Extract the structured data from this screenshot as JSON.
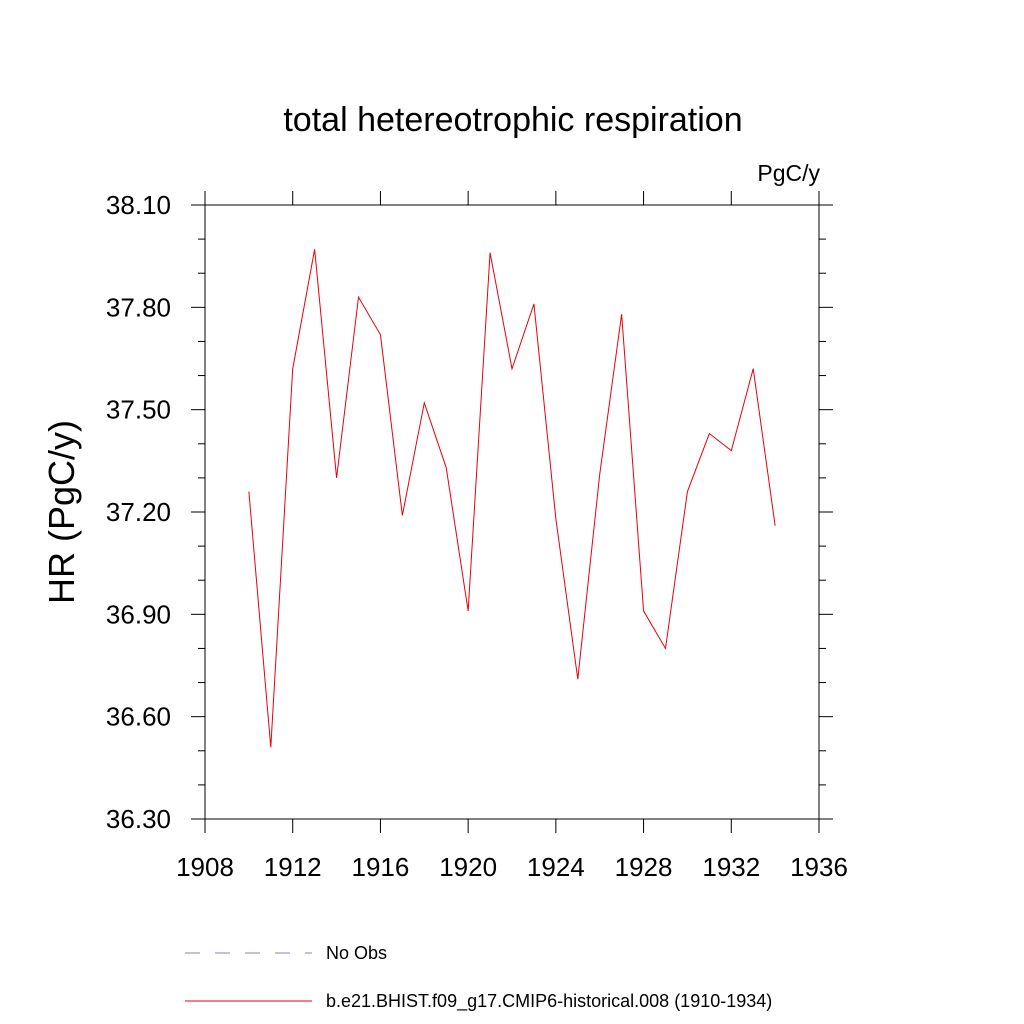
{
  "chart_data": {
    "type": "line",
    "title": "total hetereotrophic respiration",
    "units_label": "PgC/y",
    "ylabel": "HR  (PgC/y)",
    "xlabel": "",
    "xlim": [
      1908,
      1936
    ],
    "ylim": [
      36.3,
      38.1
    ],
    "x_ticks": [
      "1908",
      "1912",
      "1916",
      "1920",
      "1924",
      "1928",
      "1932",
      "1936"
    ],
    "y_ticks": [
      "36.30",
      "36.60",
      "36.90",
      "37.20",
      "37.50",
      "37.80",
      "38.10"
    ],
    "series": [
      {
        "name": "b.e21.BHIST.f09_g17.CMIP6-historical.008 (1910-1934)",
        "color": "#e8000b",
        "style": "solid",
        "x": [
          1910,
          1911,
          1912,
          1913,
          1914,
          1915,
          1916,
          1917,
          1918,
          1919,
          1920,
          1921,
          1922,
          1923,
          1924,
          1925,
          1926,
          1927,
          1928,
          1929,
          1930,
          1931,
          1932,
          1933,
          1934
        ],
        "values": [
          37.26,
          36.51,
          37.62,
          37.97,
          37.3,
          37.83,
          37.72,
          37.19,
          37.52,
          37.33,
          36.91,
          37.96,
          37.62,
          37.81,
          37.18,
          36.71,
          37.31,
          37.78,
          36.91,
          36.8,
          37.26,
          37.43,
          37.38,
          37.62,
          37.16
        ]
      }
    ],
    "legend": [
      {
        "label": "No Obs",
        "color": "#7f7fd0",
        "style": "dashed"
      },
      {
        "label": "b.e21.BHIST.f09_g17.CMIP6-historical.008 (1910-1934)",
        "color": "#e8000b",
        "style": "solid"
      }
    ]
  }
}
